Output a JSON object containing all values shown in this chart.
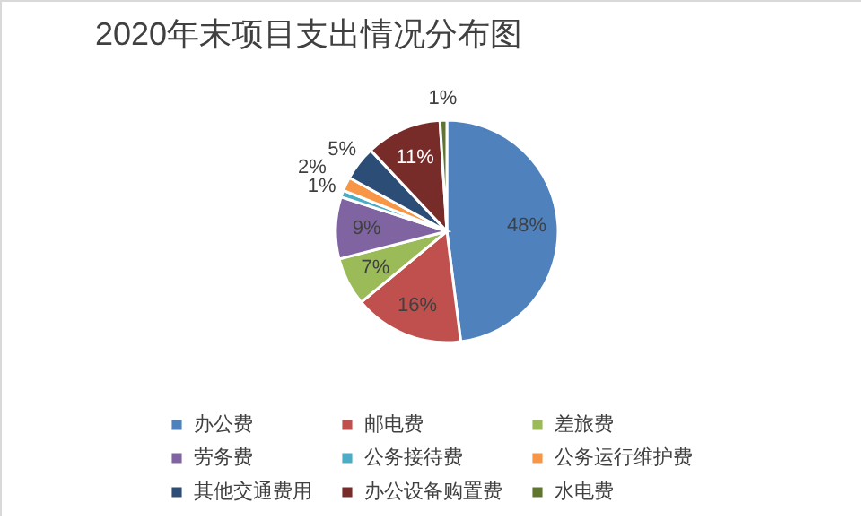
{
  "chart_data": {
    "type": "pie",
    "title": "2020年末项目支出情况分布图",
    "categories": [
      "办公费",
      "邮电费",
      "差旅费",
      "劳务费",
      "公务接待费",
      "公务运行维护费",
      "其他交通费用",
      "办公设备购置费",
      "水电费"
    ],
    "values": [
      48,
      16,
      7,
      9,
      1,
      2,
      5,
      11,
      1
    ],
    "value_labels": [
      "48%",
      "16%",
      "7%",
      "9%",
      "1%",
      "2%",
      "5%",
      "11%",
      "1%"
    ],
    "colors": [
      "#4f81bd",
      "#c0504d",
      "#9bbb59",
      "#8064a2",
      "#4bacc6",
      "#f79646",
      "#2c4d75",
      "#772c2a",
      "#5f7530"
    ],
    "legend": "bottom"
  }
}
